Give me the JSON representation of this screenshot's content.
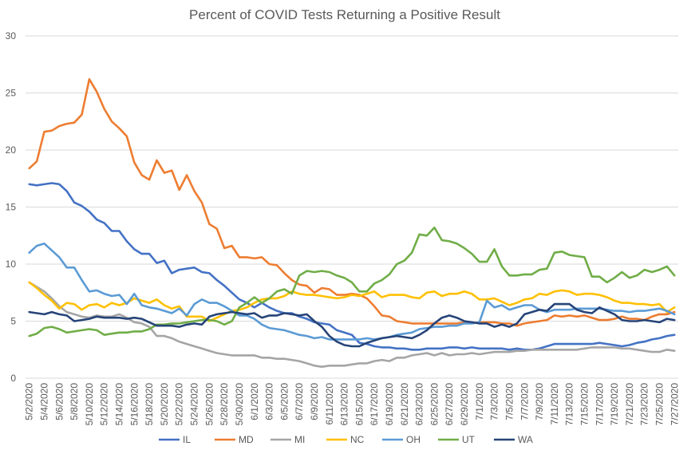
{
  "chart_data": {
    "type": "line",
    "title": "Percent of COVID Tests Returning a Positive Result",
    "xlabel": "",
    "ylabel": "",
    "ylim": [
      0,
      30
    ],
    "yticks": [
      0,
      5,
      10,
      15,
      20,
      25,
      30
    ],
    "grid": true,
    "legend_position": "bottom",
    "x": [
      "5/2/2020",
      "5/3/2020",
      "5/4/2020",
      "5/5/2020",
      "5/6/2020",
      "5/7/2020",
      "5/8/2020",
      "5/9/2020",
      "5/10/2020",
      "5/11/2020",
      "5/12/2020",
      "5/13/2020",
      "5/14/2020",
      "5/15/2020",
      "5/16/2020",
      "5/17/2020",
      "5/18/2020",
      "5/19/2020",
      "5/20/2020",
      "5/21/2020",
      "5/22/2020",
      "5/23/2020",
      "5/24/2020",
      "5/25/2020",
      "5/26/2020",
      "5/27/2020",
      "5/28/2020",
      "5/29/2020",
      "5/30/2020",
      "5/31/2020",
      "6/1/2020",
      "6/2/2020",
      "6/3/2020",
      "6/4/2020",
      "6/5/2020",
      "6/6/2020",
      "6/7/2020",
      "6/8/2020",
      "6/9/2020",
      "6/10/2020",
      "6/11/2020",
      "6/12/2020",
      "6/13/2020",
      "6/14/2020",
      "6/15/2020",
      "6/16/2020",
      "6/17/2020",
      "6/18/2020",
      "6/19/2020",
      "6/20/2020",
      "6/21/2020",
      "6/22/2020",
      "6/23/2020",
      "6/24/2020",
      "6/25/2020",
      "6/26/2020",
      "6/27/2020",
      "6/28/2020",
      "6/29/2020",
      "6/30/2020",
      "7/1/2020",
      "7/2/2020",
      "7/3/2020",
      "7/4/2020",
      "7/5/2020",
      "7/6/2020",
      "7/7/2020",
      "7/8/2020",
      "7/9/2020",
      "7/10/2020",
      "7/11/2020",
      "7/12/2020",
      "7/13/2020",
      "7/14/2020",
      "7/15/2020",
      "7/16/2020",
      "7/17/2020",
      "7/18/2020",
      "7/19/2020",
      "7/20/2020",
      "7/21/2020",
      "7/22/2020",
      "7/23/2020",
      "7/24/2020",
      "7/25/2020",
      "7/26/2020",
      "7/27/2020"
    ],
    "x_tick_labels": [
      "5/2/2020",
      "5/4/2020",
      "5/6/2020",
      "5/8/2020",
      "5/10/2020",
      "5/12/2020",
      "5/14/2020",
      "5/16/2020",
      "5/18/2020",
      "5/20/2020",
      "5/22/2020",
      "5/24/2020",
      "5/26/2020",
      "5/28/2020",
      "5/30/2020",
      "6/1/2020",
      "6/3/2020",
      "6/5/2020",
      "6/7/2020",
      "6/9/2020",
      "6/11/2020",
      "6/13/2020",
      "6/15/2020",
      "6/17/2020",
      "6/19/2020",
      "6/21/2020",
      "6/23/2020",
      "6/25/2020",
      "6/27/2020",
      "6/29/2020",
      "7/1/2020",
      "7/3/2020",
      "7/5/2020",
      "7/7/2020",
      "7/9/2020",
      "7/11/2020",
      "7/13/2020",
      "7/15/2020",
      "7/17/2020",
      "7/19/2020",
      "7/21/2020",
      "7/23/2020",
      "7/25/2020",
      "7/27/2020"
    ],
    "series": [
      {
        "name": "IL",
        "color": "#4472C4",
        "values": [
          17.0,
          16.9,
          17.0,
          17.1,
          17.0,
          16.4,
          15.4,
          15.1,
          14.6,
          13.9,
          13.6,
          12.9,
          12.9,
          12.0,
          11.3,
          10.9,
          10.9,
          10.1,
          10.3,
          9.2,
          9.5,
          9.6,
          9.7,
          9.3,
          9.2,
          8.6,
          8.1,
          7.5,
          6.9,
          6.6,
          6.2,
          6.6,
          6.2,
          5.9,
          5.7,
          5.7,
          5.4,
          5.2,
          4.9,
          4.8,
          4.7,
          4.2,
          4.0,
          3.8,
          3.1,
          3.0,
          2.8,
          2.7,
          2.7,
          2.6,
          2.6,
          2.5,
          2.5,
          2.6,
          2.6,
          2.6,
          2.7,
          2.7,
          2.6,
          2.7,
          2.6,
          2.6,
          2.6,
          2.6,
          2.5,
          2.6,
          2.5,
          2.5,
          2.6,
          2.8,
          3.0,
          3.0,
          3.0,
          3.0,
          3.0,
          3.0,
          3.1,
          3.0,
          2.9,
          2.8,
          2.9,
          3.1,
          3.2,
          3.4,
          3.5,
          3.7,
          3.8
        ]
      },
      {
        "name": "MD",
        "color": "#ED7D31",
        "values": [
          18.4,
          19.0,
          21.6,
          21.7,
          22.1,
          22.3,
          22.4,
          23.1,
          26.2,
          25.1,
          23.6,
          22.5,
          21.9,
          21.2,
          18.9,
          17.8,
          17.4,
          19.1,
          18.0,
          18.2,
          16.5,
          17.8,
          16.4,
          15.4,
          13.5,
          13.1,
          11.4,
          11.6,
          10.6,
          10.6,
          10.5,
          10.6,
          10.0,
          9.9,
          9.2,
          8.6,
          8.2,
          8.1,
          7.5,
          7.9,
          7.8,
          7.3,
          7.3,
          7.4,
          7.3,
          7.0,
          6.3,
          5.5,
          5.4,
          5.0,
          4.9,
          4.8,
          4.8,
          4.8,
          4.8,
          4.8,
          4.8,
          4.8,
          4.9,
          4.8,
          4.9,
          4.9,
          4.9,
          4.8,
          4.8,
          4.6,
          4.8,
          4.9,
          5.0,
          5.1,
          5.5,
          5.4,
          5.5,
          5.4,
          5.5,
          5.3,
          5.1,
          5.1,
          5.2,
          5.4,
          5.2,
          5.2,
          5.1,
          5.4,
          5.6,
          5.6,
          5.8
        ]
      },
      {
        "name": "MI",
        "color": "#A5A5A5",
        "values": [
          8.4,
          8.0,
          7.6,
          7.0,
          6.3,
          5.8,
          5.6,
          5.4,
          5.3,
          5.5,
          5.4,
          5.4,
          5.6,
          5.3,
          4.9,
          4.8,
          4.5,
          3.7,
          3.7,
          3.5,
          3.2,
          3.0,
          2.8,
          2.6,
          2.4,
          2.2,
          2.1,
          2.0,
          2.0,
          2.0,
          2.0,
          1.8,
          1.8,
          1.7,
          1.7,
          1.6,
          1.5,
          1.3,
          1.1,
          1.0,
          1.1,
          1.1,
          1.1,
          1.2,
          1.3,
          1.3,
          1.5,
          1.6,
          1.5,
          1.8,
          1.8,
          2.0,
          2.1,
          2.2,
          2.0,
          2.2,
          2.0,
          2.1,
          2.1,
          2.2,
          2.1,
          2.2,
          2.3,
          2.3,
          2.3,
          2.4,
          2.4,
          2.5,
          2.5,
          2.5,
          2.5,
          2.5,
          2.5,
          2.5,
          2.6,
          2.7,
          2.7,
          2.7,
          2.7,
          2.6,
          2.6,
          2.5,
          2.4,
          2.3,
          2.3,
          2.5,
          2.4
        ]
      },
      {
        "name": "NC",
        "color": "#FFC000",
        "values": [
          8.4,
          7.9,
          7.3,
          6.8,
          6.1,
          6.6,
          6.5,
          6.0,
          6.4,
          6.5,
          6.2,
          6.6,
          6.4,
          6.6,
          7.0,
          6.8,
          6.6,
          6.9,
          6.4,
          6.1,
          6.3,
          5.4,
          5.4,
          5.4,
          5.0,
          5.3,
          5.6,
          5.9,
          6.0,
          6.2,
          6.6,
          6.9,
          7.0,
          7.0,
          7.2,
          7.6,
          7.4,
          7.3,
          7.3,
          7.2,
          7.1,
          7.0,
          7.1,
          7.3,
          7.2,
          7.4,
          7.6,
          7.1,
          7.3,
          7.3,
          7.3,
          7.1,
          7.0,
          7.5,
          7.6,
          7.2,
          7.4,
          7.4,
          7.6,
          7.4,
          6.9,
          6.9,
          7.0,
          6.7,
          6.4,
          6.6,
          6.9,
          7.0,
          7.4,
          7.3,
          7.6,
          7.7,
          7.6,
          7.3,
          7.4,
          7.4,
          7.3,
          7.1,
          6.8,
          6.6,
          6.6,
          6.5,
          6.5,
          6.4,
          6.5,
          5.8,
          6.2
        ]
      },
      {
        "name": "OH",
        "color": "#5B9BD5",
        "values": [
          11.0,
          11.6,
          11.8,
          11.2,
          10.6,
          9.7,
          9.7,
          8.6,
          7.6,
          7.7,
          7.4,
          7.2,
          7.3,
          6.5,
          7.4,
          6.4,
          6.2,
          6.1,
          5.9,
          5.7,
          6.1,
          5.5,
          6.5,
          6.9,
          6.6,
          6.6,
          6.3,
          5.9,
          5.5,
          5.5,
          5.2,
          4.7,
          4.4,
          4.3,
          4.2,
          4.0,
          3.8,
          3.7,
          3.5,
          3.6,
          3.4,
          3.4,
          3.4,
          3.4,
          3.4,
          3.5,
          3.4,
          3.5,
          3.6,
          3.8,
          3.9,
          4.0,
          4.3,
          4.4,
          4.5,
          4.5,
          4.6,
          4.6,
          4.8,
          4.8,
          4.9,
          6.8,
          6.2,
          6.4,
          6.0,
          6.2,
          6.4,
          6.4,
          6.0,
          5.8,
          6.0,
          6.0,
          6.0,
          6.1,
          6.1,
          6.1,
          6.1,
          6.0,
          5.9,
          5.9,
          5.8,
          5.9,
          5.9,
          6.0,
          6.1,
          5.9,
          5.6
        ]
      },
      {
        "name": "UT",
        "color": "#70AD47",
        "values": [
          3.7,
          3.9,
          4.4,
          4.5,
          4.3,
          4.0,
          4.1,
          4.2,
          4.3,
          4.2,
          3.8,
          3.9,
          4.0,
          4.0,
          4.1,
          4.1,
          4.3,
          4.7,
          4.7,
          4.8,
          4.8,
          4.9,
          5.0,
          5.1,
          5.1,
          5.0,
          4.7,
          5.0,
          6.2,
          6.6,
          7.1,
          6.6,
          7.0,
          7.6,
          7.8,
          7.4,
          9.0,
          9.4,
          9.3,
          9.4,
          9.3,
          9.0,
          8.8,
          8.4,
          7.6,
          7.6,
          8.3,
          8.6,
          9.1,
          10.0,
          10.3,
          11.0,
          12.6,
          12.5,
          13.2,
          12.1,
          12.0,
          11.8,
          11.4,
          10.9,
          10.2,
          10.2,
          11.3,
          9.8,
          9.0,
          9.0,
          9.1,
          9.1,
          9.5,
          9.6,
          11.0,
          11.1,
          10.8,
          10.7,
          10.6,
          8.9,
          8.9,
          8.4,
          8.8,
          9.3,
          8.8,
          9.0,
          9.5,
          9.3,
          9.5,
          9.8,
          9.0
        ]
      },
      {
        "name": "WA",
        "color": "#264478",
        "values": [
          5.8,
          5.7,
          5.6,
          5.8,
          5.6,
          5.5,
          5.0,
          5.1,
          5.2,
          5.4,
          5.3,
          5.3,
          5.3,
          5.2,
          5.3,
          5.2,
          4.9,
          4.6,
          4.6,
          4.6,
          4.5,
          4.7,
          4.8,
          4.7,
          5.4,
          5.6,
          5.7,
          5.8,
          5.7,
          5.6,
          5.7,
          5.3,
          5.5,
          5.5,
          5.7,
          5.6,
          5.5,
          5.6,
          5.0,
          4.5,
          3.7,
          3.2,
          2.9,
          2.8,
          2.8,
          3.1,
          3.3,
          3.5,
          3.6,
          3.7,
          3.6,
          3.5,
          3.8,
          4.2,
          4.8,
          5.3,
          5.5,
          5.3,
          5.0,
          4.9,
          4.8,
          4.8,
          4.5,
          4.7,
          4.5,
          4.8,
          5.6,
          5.8,
          6.0,
          5.9,
          6.5,
          6.5,
          6.5,
          6.0,
          5.8,
          5.7,
          6.2,
          5.9,
          5.6,
          5.1,
          5.0,
          5.0,
          5.1,
          5.0,
          4.9,
          5.2,
          5.1
        ]
      }
    ]
  }
}
